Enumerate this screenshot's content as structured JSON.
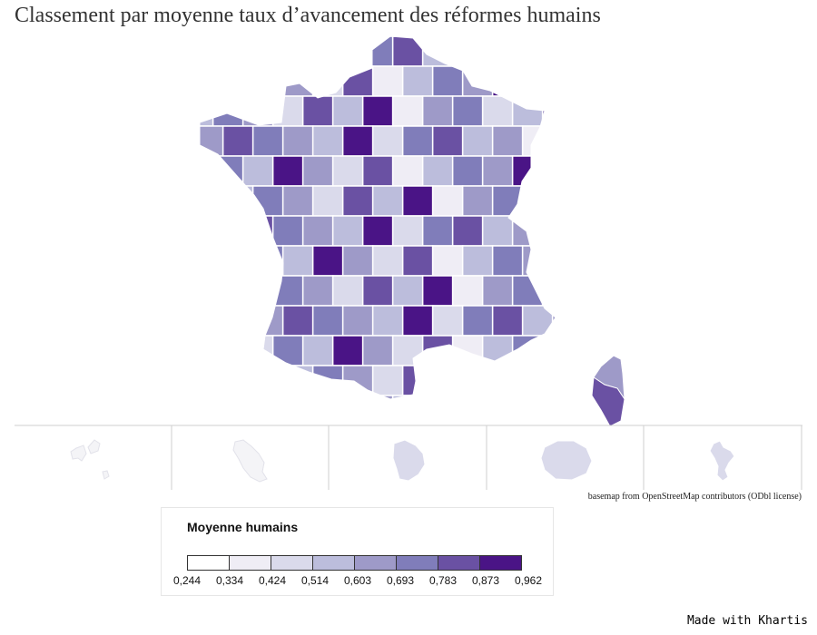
{
  "title": "Classement par moyenne taux d’avancement des réformes humains",
  "basemap_credit": "basemap from OpenStreetMap contributors (ODbl license)",
  "made_with": "Made with Khartis",
  "legend": {
    "title": "Moyenne humains",
    "breaks": [
      "0,244",
      "0,334",
      "0,424",
      "0,514",
      "0,603",
      "0,693",
      "0,783",
      "0,873",
      "0,962"
    ],
    "colors": [
      "#ffffff",
      "#efedf5",
      "#dadaeb",
      "#bcbddc",
      "#9e9ac8",
      "#807dba",
      "#6a51a3",
      "#4a1486"
    ]
  },
  "map": {
    "subject": "France départements choropleth",
    "insets": [
      "Guadeloupe",
      "Martinique",
      "Guyane",
      "La Réunion",
      "Mayotte"
    ],
    "inset_color": "#dadaeb",
    "border_color": "#ffffff"
  }
}
